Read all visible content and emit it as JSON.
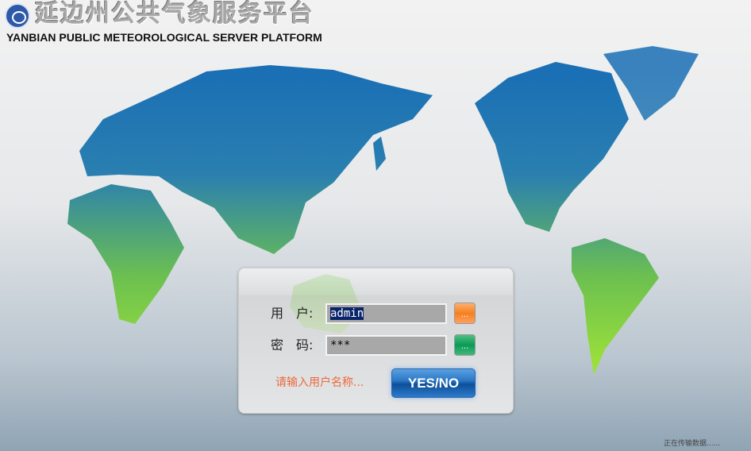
{
  "header": {
    "title_cn": "延边州公共气象服务平台",
    "title_en": "YANBIAN PUBLIC METEOROLOGICAL SERVER PLATFORM",
    "logo_icon": "cloud-swirl-logo"
  },
  "login": {
    "username_label": "用　户:",
    "username_value": "admin",
    "password_label": "密　码:",
    "password_value": "***",
    "username_button": "...",
    "password_button": "...",
    "hint": "请输入用户名称...",
    "submit_label": "YES/NO"
  },
  "status": "正在传输数据......",
  "colors": {
    "map_top": "#1a6fb5",
    "map_bottom": "#8ed63a",
    "hint": "#ee6a3c",
    "user_btn": "#f5872a",
    "pass_btn": "#12a060"
  }
}
